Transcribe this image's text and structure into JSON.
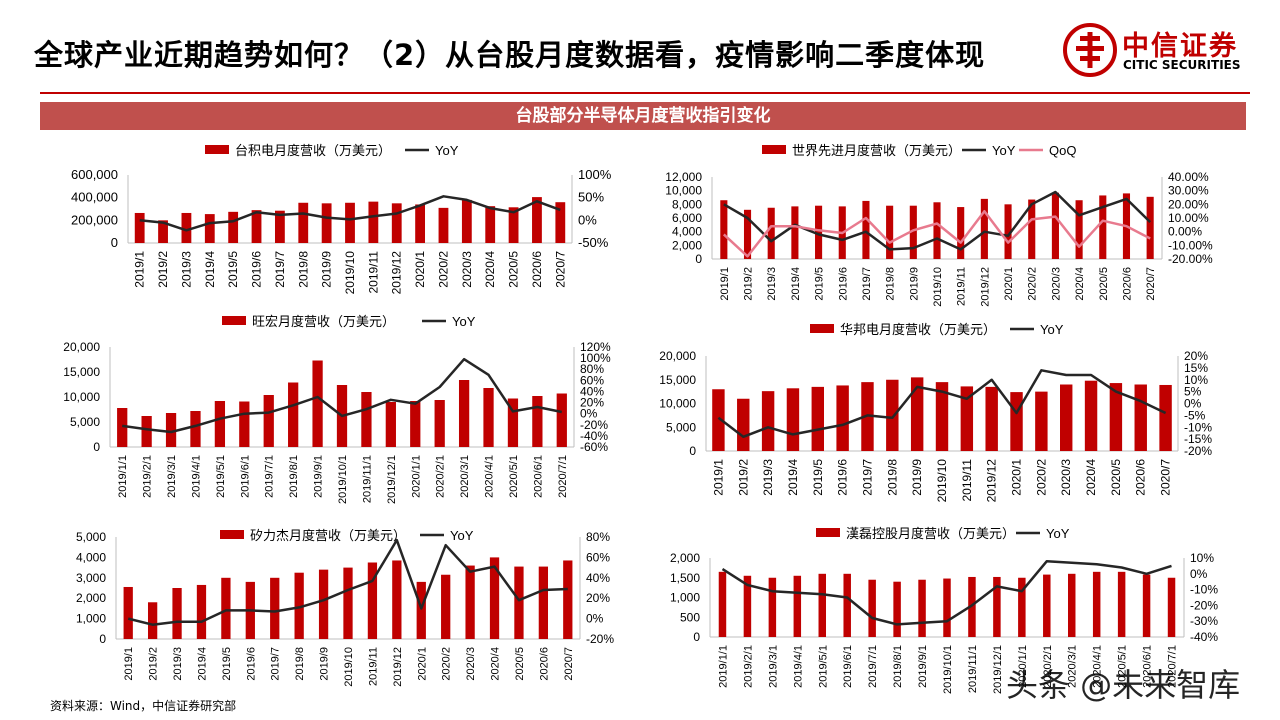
{
  "page": {
    "title": "全球产业近期趋势如何？（2）从台股月度数据看，疫情影响二季度体现",
    "banner": "台股部分半导体月度营收指引变化",
    "source": "资料来源：Wind，中信证券研究部",
    "watermark": "头条 @未来智库"
  },
  "logo": {
    "cn": "中信证券",
    "en": "CITIC SECURITIES"
  },
  "colors": {
    "bar": "#C00000",
    "yoy": "#262626",
    "qoq": "#E87A8E",
    "banner": "#C0504D"
  },
  "chart_data": [
    {
      "type": "bar",
      "legend": [
        "台积电月度营收（万美元）",
        "YoY"
      ],
      "categories": [
        "2019/1",
        "2019/2",
        "2019/3",
        "2019/4",
        "2019/5",
        "2019/6",
        "2019/7",
        "2019/8",
        "2019/9",
        "2019/10",
        "2019/11",
        "2019/12",
        "2020/1",
        "2020/2",
        "2020/3",
        "2020/4",
        "2020/5",
        "2020/6",
        "2020/7"
      ],
      "series": [
        {
          "name": "台积电月度营收（万美元）",
          "axis": "left",
          "kind": "bar",
          "values": [
            265000,
            200000,
            265000,
            255000,
            275000,
            290000,
            285000,
            355000,
            350000,
            355000,
            365000,
            350000,
            340000,
            310000,
            380000,
            325000,
            315000,
            405000,
            360000
          ]
        },
        {
          "name": "YoY",
          "axis": "right",
          "kind": "line",
          "values": [
            0.0,
            -0.05,
            -0.22,
            -0.06,
            -0.02,
            0.18,
            0.12,
            0.15,
            0.06,
            0.02,
            0.09,
            0.15,
            0.33,
            0.53,
            0.45,
            0.27,
            0.18,
            0.42,
            0.23
          ]
        }
      ],
      "left_axis": {
        "min": 0,
        "max": 600000,
        "ticks": [
          "0",
          "200,000",
          "400,000",
          "600,000"
        ]
      },
      "right_axis": {
        "min": -0.5,
        "max": 1.0,
        "ticks": [
          "-50%",
          "0%",
          "50%",
          "100%"
        ]
      }
    },
    {
      "type": "bar",
      "legend": [
        "世界先进月度营收（万美元）",
        "YoY",
        "QoQ"
      ],
      "categories": [
        "2019/1",
        "2019/2",
        "2019/3",
        "2019/4",
        "2019/5",
        "2019/6",
        "2019/7",
        "2019/8",
        "2019/9",
        "2019/10",
        "2019/11",
        "2019/12",
        "2020/1",
        "2020/2",
        "2020/3",
        "2020/4",
        "2020/5",
        "2020/6",
        "2020/7"
      ],
      "series": [
        {
          "name": "世界先进月度营收（万美元）",
          "axis": "left",
          "kind": "bar",
          "values": [
            8600,
            7200,
            7500,
            7700,
            7800,
            7700,
            8500,
            7800,
            7800,
            8300,
            7600,
            8800,
            8000,
            8700,
            9700,
            8600,
            9300,
            9600,
            9100
          ]
        },
        {
          "name": "YoY",
          "axis": "right",
          "kind": "line",
          "values": [
            0.2,
            0.1,
            -0.07,
            0.05,
            -0.02,
            -0.06,
            0.0,
            -0.13,
            -0.12,
            -0.05,
            -0.13,
            0.0,
            -0.03,
            0.2,
            0.29,
            0.12,
            0.18,
            0.24,
            0.07
          ]
        },
        {
          "name": "QoQ",
          "axis": "right",
          "kind": "line",
          "values": [
            -0.02,
            -0.18,
            0.04,
            0.04,
            0.01,
            -0.01,
            0.1,
            -0.08,
            0.01,
            0.06,
            -0.08,
            0.15,
            -0.08,
            0.09,
            0.11,
            -0.11,
            0.08,
            0.04,
            -0.05
          ]
        }
      ],
      "left_axis": {
        "min": 0,
        "max": 12000,
        "ticks": [
          "0",
          "2,000",
          "4,000",
          "6,000",
          "8,000",
          "10,000",
          "12,000"
        ]
      },
      "right_axis": {
        "min": -0.2,
        "max": 0.4,
        "ticks": [
          "-20.00%",
          "-10.00%",
          "0.00%",
          "10.00%",
          "20.00%",
          "30.00%",
          "40.00%"
        ]
      }
    },
    {
      "type": "bar",
      "legend": [
        "旺宏月度营收（万美元）",
        "YoY"
      ],
      "categories": [
        "2019/1/1",
        "2019/2/1",
        "2019/3/1",
        "2019/4/1",
        "2019/5/1",
        "2019/6/1",
        "2019/7/1",
        "2019/8/1",
        "2019/9/1",
        "2019/10/1",
        "2019/11/1",
        "2019/12/1",
        "2020/1/1",
        "2020/2/1",
        "2020/3/1",
        "2020/4/1",
        "2020/5/1",
        "2020/6/1",
        "2020/7/1"
      ],
      "series": [
        {
          "name": "旺宏月度营收（万美元）",
          "axis": "left",
          "kind": "bar",
          "values": [
            7800,
            6200,
            6800,
            7200,
            9200,
            9100,
            10400,
            12900,
            17300,
            12400,
            11000,
            9000,
            9200,
            9400,
            13400,
            11800,
            9700,
            10200,
            10700
          ]
        },
        {
          "name": "YoY",
          "axis": "right",
          "kind": "line",
          "values": [
            -0.22,
            -0.28,
            -0.33,
            -0.22,
            -0.09,
            0.0,
            0.02,
            0.15,
            0.3,
            -0.04,
            0.08,
            0.25,
            0.18,
            0.48,
            0.98,
            0.7,
            0.04,
            0.12,
            0.03
          ]
        }
      ],
      "left_axis": {
        "min": 0,
        "max": 20000,
        "ticks": [
          "0",
          "5,000",
          "10,000",
          "15,000",
          "20,000"
        ]
      },
      "right_axis": {
        "min": -0.6,
        "max": 1.2,
        "ticks": [
          "-60%",
          "-40%",
          "-20%",
          "0%",
          "20%",
          "40%",
          "60%",
          "80%",
          "100%",
          "120%"
        ]
      }
    },
    {
      "type": "bar",
      "legend": [
        "华邦电月度营收（万美元）",
        "YoY"
      ],
      "categories": [
        "2019/1",
        "2019/2",
        "2019/3",
        "2019/4",
        "2019/5",
        "2019/6",
        "2019/7",
        "2019/8",
        "2019/9",
        "2019/10",
        "2019/11",
        "2019/12",
        "2020/1",
        "2020/2",
        "2020/3",
        "2020/4",
        "2020/5",
        "2020/6",
        "2020/7"
      ],
      "series": [
        {
          "name": "华邦电月度营收（万美元）",
          "axis": "left",
          "kind": "bar",
          "values": [
            13000,
            11000,
            12600,
            13200,
            13500,
            13800,
            14500,
            15000,
            15500,
            14500,
            13600,
            13500,
            12400,
            12500,
            14000,
            14800,
            14300,
            14000,
            13900
          ]
        },
        {
          "name": "YoY",
          "axis": "right",
          "kind": "line",
          "values": [
            -0.06,
            -0.14,
            -0.1,
            -0.13,
            -0.11,
            -0.09,
            -0.05,
            -0.06,
            0.07,
            0.05,
            0.02,
            0.1,
            -0.04,
            0.14,
            0.12,
            0.12,
            0.05,
            0.01,
            -0.04
          ]
        }
      ],
      "left_axis": {
        "min": 0,
        "max": 20000,
        "ticks": [
          "0",
          "5,000",
          "10,000",
          "15,000",
          "20,000"
        ]
      },
      "right_axis": {
        "min": -0.2,
        "max": 0.2,
        "ticks": [
          "-20%",
          "-15%",
          "-10%",
          "-5%",
          "0%",
          "5%",
          "10%",
          "15%",
          "20%"
        ]
      }
    },
    {
      "type": "bar",
      "legend": [
        "矽力杰月度营收（万美元）",
        "YoY"
      ],
      "categories": [
        "2019/1",
        "2019/2",
        "2019/3",
        "2019/4",
        "2019/5",
        "2019/6",
        "2019/7",
        "2019/8",
        "2019/9",
        "2019/10",
        "2019/11",
        "2019/12",
        "2020/1",
        "2020/2",
        "2020/3",
        "2020/4",
        "2020/5",
        "2020/6",
        "2020/7"
      ],
      "series": [
        {
          "name": "矽力杰月度营收（万美元）",
          "axis": "left",
          "kind": "bar",
          "values": [
            2550,
            1800,
            2500,
            2650,
            3000,
            2800,
            3000,
            3250,
            3400,
            3500,
            3750,
            3850,
            2800,
            3150,
            3600,
            4000,
            3550,
            3550,
            3850
          ]
        },
        {
          "name": "YoY",
          "axis": "right",
          "kind": "line",
          "values": [
            0.0,
            -0.06,
            -0.03,
            -0.03,
            0.08,
            0.08,
            0.07,
            0.11,
            0.18,
            0.28,
            0.37,
            0.77,
            0.1,
            0.72,
            0.46,
            0.51,
            0.18,
            0.28,
            0.29
          ]
        }
      ],
      "left_axis": {
        "min": 0,
        "max": 5000,
        "ticks": [
          "0",
          "1,000",
          "2,000",
          "3,000",
          "4,000",
          "5,000"
        ]
      },
      "right_axis": {
        "min": -0.2,
        "max": 0.8,
        "ticks": [
          "-20%",
          "0%",
          "20%",
          "40%",
          "60%",
          "80%"
        ]
      }
    },
    {
      "type": "bar",
      "legend": [
        "漢磊控股月度营收（万美元）",
        "YoY"
      ],
      "categories": [
        "2019/1/1",
        "2019/2/1",
        "2019/3/1",
        "2019/4/1",
        "2019/5/1",
        "2019/6/1",
        "2019/7/1",
        "2019/8/1",
        "2019/9/1",
        "2019/10/1",
        "2019/11/1",
        "2019/12/1",
        "2020/1/1",
        "2020/2/1",
        "2020/3/1",
        "2020/4/1",
        "2020/5/1",
        "2020/6/1",
        "2020/7/1"
      ],
      "series": [
        {
          "name": "漢磊控股月度营收（万美元）",
          "axis": "left",
          "kind": "bar",
          "values": [
            1650,
            1550,
            1500,
            1550,
            1600,
            1600,
            1450,
            1400,
            1450,
            1480,
            1520,
            1520,
            1500,
            1580,
            1600,
            1650,
            1650,
            1580,
            1500
          ]
        },
        {
          "name": "YoY",
          "axis": "right",
          "kind": "line",
          "values": [
            0.03,
            -0.07,
            -0.11,
            -0.12,
            -0.13,
            -0.15,
            -0.28,
            -0.32,
            -0.31,
            -0.3,
            -0.2,
            -0.08,
            -0.11,
            0.08,
            0.07,
            0.06,
            0.04,
            0.0,
            0.05
          ]
        }
      ],
      "left_axis": {
        "min": 0,
        "max": 2000,
        "ticks": [
          "0",
          "500",
          "1,000",
          "1,500",
          "2,000"
        ]
      },
      "right_axis": {
        "min": -0.4,
        "max": 0.1,
        "ticks": [
          "-40%",
          "-30%",
          "-20%",
          "-10%",
          "0%",
          "10%"
        ]
      }
    }
  ]
}
